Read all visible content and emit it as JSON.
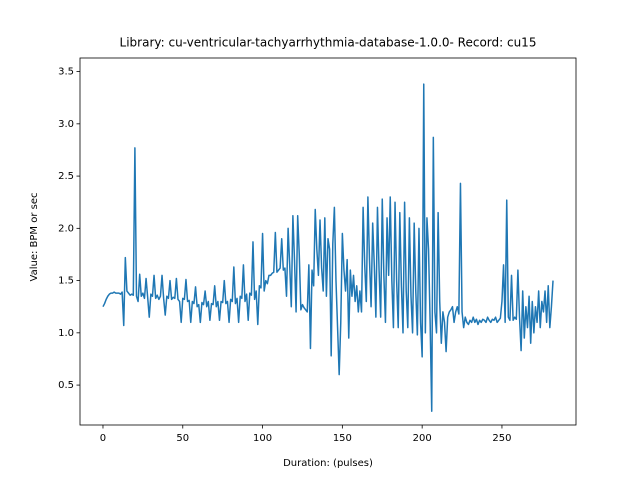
{
  "chart_data": {
    "type": "line",
    "title": "Library: cu-ventricular-tachyarrhythmia-database-1.0.0- Record: cu15",
    "xlabel": "Duration: (pulses)",
    "ylabel": "Value: BPM or sec",
    "color": "#1f77b4",
    "xlim": [
      -14.4,
      296.4
    ],
    "ylim": [
      0.118,
      3.63
    ],
    "xticks": [
      0,
      50,
      100,
      150,
      200,
      250
    ],
    "yticks": [
      0.5,
      {
        "value": 1,
        "label": "1.0"
      },
      1.5,
      {
        "value": 2,
        "label": "2.0"
      },
      2.5,
      {
        "value": 3,
        "label": "3.0"
      },
      3.5
    ],
    "x": [
      0,
      1,
      2,
      3,
      4,
      5,
      6,
      7,
      8,
      9,
      10,
      11,
      12,
      13,
      14,
      15,
      16,
      17,
      18,
      19,
      20,
      21,
      22,
      23,
      24,
      25,
      26,
      27,
      28,
      29,
      30,
      31,
      32,
      33,
      34,
      35,
      36,
      37,
      38,
      39,
      40,
      41,
      42,
      43,
      44,
      45,
      46,
      47,
      48,
      49,
      50,
      51,
      52,
      53,
      54,
      55,
      56,
      57,
      58,
      59,
      60,
      61,
      62,
      63,
      64,
      65,
      66,
      67,
      68,
      69,
      70,
      71,
      72,
      73,
      74,
      75,
      76,
      77,
      78,
      79,
      80,
      81,
      82,
      83,
      84,
      85,
      86,
      87,
      88,
      89,
      90,
      91,
      92,
      93,
      94,
      95,
      96,
      97,
      98,
      99,
      100,
      101,
      102,
      103,
      104,
      105,
      106,
      107,
      108,
      109,
      110,
      111,
      112,
      113,
      114,
      115,
      116,
      117,
      118,
      119,
      120,
      121,
      122,
      123,
      124,
      125,
      126,
      127,
      128,
      129,
      130,
      131,
      132,
      133,
      134,
      135,
      136,
      137,
      138,
      139,
      140,
      141,
      142,
      143,
      144,
      145,
      146,
      147,
      148,
      149,
      150,
      151,
      152,
      153,
      154,
      155,
      156,
      157,
      158,
      159,
      160,
      161,
      162,
      163,
      164,
      165,
      166,
      167,
      168,
      169,
      170,
      171,
      172,
      173,
      174,
      175,
      176,
      177,
      178,
      179,
      180,
      181,
      182,
      183,
      184,
      185,
      186,
      187,
      188,
      189,
      190,
      191,
      192,
      193,
      194,
      195,
      196,
      197,
      198,
      199,
      200,
      201,
      202,
      203,
      204,
      205,
      206,
      207,
      208,
      209,
      210,
      211,
      212,
      213,
      214,
      215,
      216,
      217,
      218,
      219,
      220,
      221,
      222,
      223,
      224,
      225,
      226,
      227,
      228,
      229,
      230,
      231,
      232,
      233,
      234,
      235,
      236,
      237,
      238,
      239,
      240,
      241,
      242,
      243,
      244,
      245,
      246,
      247,
      248,
      249,
      250,
      251,
      252,
      253,
      254,
      255,
      256,
      257,
      258,
      259,
      260,
      261,
      262,
      263,
      264,
      265,
      266,
      267,
      268,
      269,
      270,
      271,
      272,
      273,
      274,
      275,
      276,
      277,
      278,
      279,
      280,
      281,
      282
    ],
    "values": [
      1.25,
      1.28,
      1.32,
      1.35,
      1.37,
      1.38,
      1.38,
      1.39,
      1.38,
      1.38,
      1.38,
      1.37,
      1.39,
      1.07,
      1.72,
      1.4,
      1.38,
      1.36,
      1.37,
      1.36,
      2.77,
      1.35,
      1.3,
      1.56,
      1.35,
      1.38,
      1.33,
      1.52,
      1.34,
      1.15,
      1.37,
      1.35,
      1.55,
      1.33,
      1.36,
      1.32,
      1.35,
      1.55,
      1.33,
      1.17,
      1.35,
      1.33,
      1.5,
      1.32,
      1.34,
      1.33,
      1.52,
      1.32,
      1.3,
      1.1,
      1.33,
      1.32,
      1.51,
      1.3,
      1.31,
      1.1,
      1.3,
      1.28,
      1.44,
      1.25,
      1.27,
      1.1,
      1.29,
      1.27,
      1.4,
      1.25,
      1.3,
      1.12,
      1.28,
      1.27,
      1.45,
      1.25,
      1.3,
      1.12,
      1.3,
      1.29,
      1.5,
      1.28,
      1.3,
      1.1,
      1.32,
      1.3,
      1.63,
      1.28,
      1.33,
      1.1,
      1.35,
      1.33,
      1.65,
      1.3,
      1.37,
      1.12,
      1.38,
      1.36,
      1.87,
      1.32,
      1.4,
      1.08,
      1.45,
      1.43,
      1.95,
      1.4,
      1.5,
      1.47,
      1.55,
      1.55,
      1.57,
      1.58,
      1.96,
      1.58,
      1.6,
      1.62,
      1.9,
      1.6,
      1.62,
      1.35,
      2.0,
      1.65,
      1.25,
      2.12,
      1.7,
      1.2,
      2.12,
      1.75,
      1.22,
      1.27,
      1.24,
      1.22,
      1.2,
      1.65,
      0.85,
      1.6,
      1.45,
      2.18,
      1.8,
      1.55,
      2.08,
      1.62,
      1.4,
      2.1,
      1.35,
      1.9,
      1.8,
      0.78,
      1.85,
      2.2,
      1.5,
      1.05,
      0.6,
      1.1,
      1.95,
      1.6,
      1.4,
      1.7,
      0.95,
      1.6,
      1.35,
      1.55,
      1.3,
      1.45,
      1.2,
      1.4,
      1.2,
      2.2,
      1.65,
      1.3,
      2.3,
      1.7,
      1.25,
      2.05,
      1.65,
      1.15,
      2.2,
      1.6,
      1.15,
      2.28,
      1.55,
      1.1,
      2.1,
      1.55,
      2.3,
      1.5,
      1.05,
      2.25,
      1.5,
      1.05,
      2.15,
      1.45,
      1.0,
      2.25,
      1.4,
      1.05,
      2.1,
      1.35,
      1.0,
      2.05,
      1.4,
      0.98,
      2.0,
      1.1,
      0.77,
      3.38,
      1.0,
      2.1,
      1.8,
      1.1,
      0.25,
      2.87,
      1.2,
      1.0,
      2.15,
      1.3,
      0.9,
      1.2,
      1.1,
      0.82,
      1.15,
      1.2,
      1.22,
      1.25,
      1.1,
      1.2,
      1.25,
      1.18,
      2.43,
      1.2,
      1.05,
      1.15,
      1.1,
      1.08,
      1.12,
      1.1,
      1.15,
      1.1,
      1.13,
      1.08,
      1.12,
      1.1,
      1.13,
      1.12,
      1.1,
      1.15,
      1.12,
      1.1,
      1.13,
      1.12,
      1.15,
      1.1,
      1.12,
      1.14,
      1.3,
      1.65,
      1.1,
      2.27,
      1.15,
      1.12,
      1.55,
      1.12,
      1.15,
      1.13,
      1.6,
      1.15,
      0.83,
      1.4,
      0.95,
      1.25,
      1.05,
      1.35,
      0.9,
      1.3,
      1.0,
      1.25,
      1.1,
      1.4,
      1.05,
      1.3,
      1.2,
      1.4,
      1.1,
      1.45,
      1.05,
      1.25,
      1.5
    ]
  }
}
